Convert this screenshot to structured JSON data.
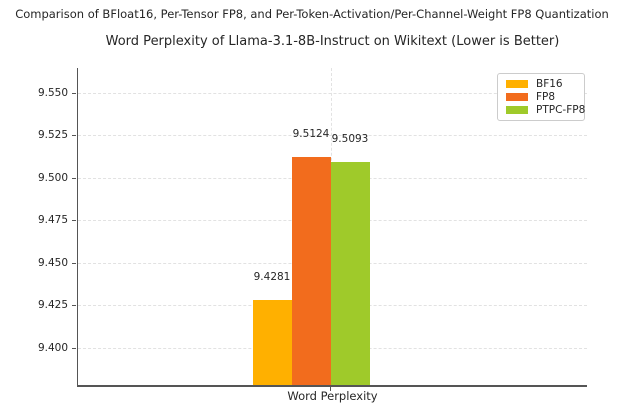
{
  "figure_title": "Comparison of BFloat16, Per-Tensor FP8, and Per-Token-Activation/Per-Channel-Weight FP8 Quantization",
  "chart_data": {
    "type": "bar",
    "title": "Word Perplexity of Llama-3.1-8B-Instruct on Wikitext (Lower is Better)",
    "categories": [
      "Word Perplexity"
    ],
    "xlabel": "Word Perplexity",
    "ylabel": "",
    "ylim": [
      9.3782,
      9.5647
    ],
    "yticks": [
      9.4,
      9.425,
      9.45,
      9.475,
      9.5,
      9.525,
      9.55
    ],
    "ytick_labels": [
      "9.400",
      "9.425",
      "9.450",
      "9.475",
      "9.500",
      "9.525",
      "9.550"
    ],
    "grid": "dashed, horizontal at yticks plus vertical at category tick",
    "legend_position": "upper right",
    "series": [
      {
        "name": "BF16",
        "values": [
          9.4281
        ],
        "value_label": "9.4281",
        "color": "#FFB000"
      },
      {
        "name": "FP8",
        "values": [
          9.5124
        ],
        "value_label": "9.5124",
        "color": "#F26C1D"
      },
      {
        "name": "PTPC-FP8",
        "values": [
          9.5093
        ],
        "value_label": "9.5093",
        "color": "#9FCA2A"
      }
    ]
  },
  "colors": {
    "axis": "#555555",
    "grid": "#e2e2e2",
    "text": "#262626",
    "background": "#ffffff"
  }
}
